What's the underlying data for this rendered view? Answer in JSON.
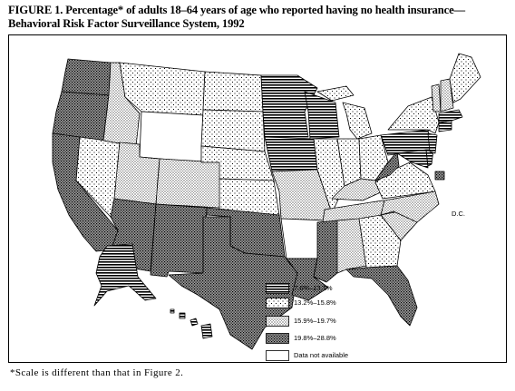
{
  "title": "FIGURE 1. Percentage* of adults 18–64 years of age who reported having no health insurance—Behavioral Risk Factor Surveillance System, 1992",
  "footnote": "*Scale is different than that in Figure 2.",
  "dc_label": "D.C.",
  "legend": {
    "items": [
      {
        "label": "7.6%–13.1%",
        "pattern": "horizontal-stripes"
      },
      {
        "label": "13.2%–15.8%",
        "pattern": "sparse-dots"
      },
      {
        "label": "15.9%–19.7%",
        "pattern": "dense-dots"
      },
      {
        "label": "19.8%–28.8%",
        "pattern": "crosshatch"
      },
      {
        "label": "Data not available",
        "pattern": "blank"
      }
    ]
  }
}
